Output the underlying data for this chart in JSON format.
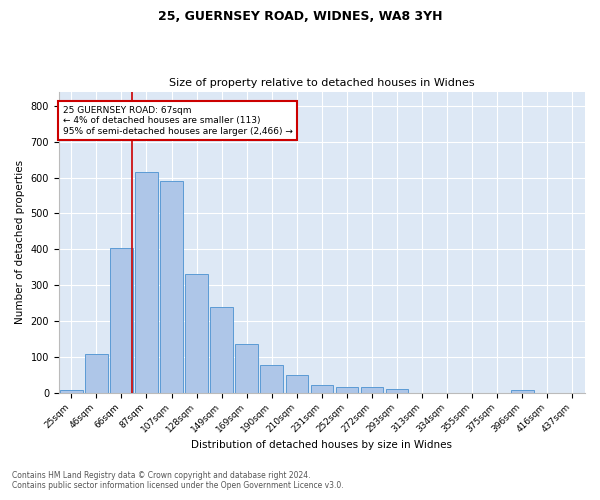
{
  "title_line1": "25, GUERNSEY ROAD, WIDNES, WA8 3YH",
  "title_line2": "Size of property relative to detached houses in Widnes",
  "xlabel": "Distribution of detached houses by size in Widnes",
  "ylabel": "Number of detached properties",
  "categories": [
    "25sqm",
    "46sqm",
    "66sqm",
    "87sqm",
    "107sqm",
    "128sqm",
    "149sqm",
    "169sqm",
    "190sqm",
    "210sqm",
    "231sqm",
    "252sqm",
    "272sqm",
    "293sqm",
    "313sqm",
    "334sqm",
    "355sqm",
    "375sqm",
    "396sqm",
    "416sqm",
    "437sqm"
  ],
  "values": [
    8,
    107,
    403,
    615,
    590,
    330,
    238,
    135,
    78,
    50,
    21,
    15,
    15,
    9,
    0,
    0,
    0,
    0,
    8,
    0,
    0
  ],
  "bar_color": "#aec6e8",
  "bar_edge_color": "#5b9bd5",
  "background_color": "#dde8f5",
  "annotation_text_line1": "25 GUERNSEY ROAD: 67sqm",
  "annotation_text_line2": "← 4% of detached houses are smaller (113)",
  "annotation_text_line3": "95% of semi-detached houses are larger (2,466) →",
  "annotation_box_color": "#ffffff",
  "annotation_border_color": "#cc0000",
  "vline_color": "#cc0000",
  "ylim": [
    0,
    840
  ],
  "yticks": [
    0,
    100,
    200,
    300,
    400,
    500,
    600,
    700,
    800
  ],
  "footer_line1": "Contains HM Land Registry data © Crown copyright and database right 2024.",
  "footer_line2": "Contains public sector information licensed under the Open Government Licence v3.0."
}
